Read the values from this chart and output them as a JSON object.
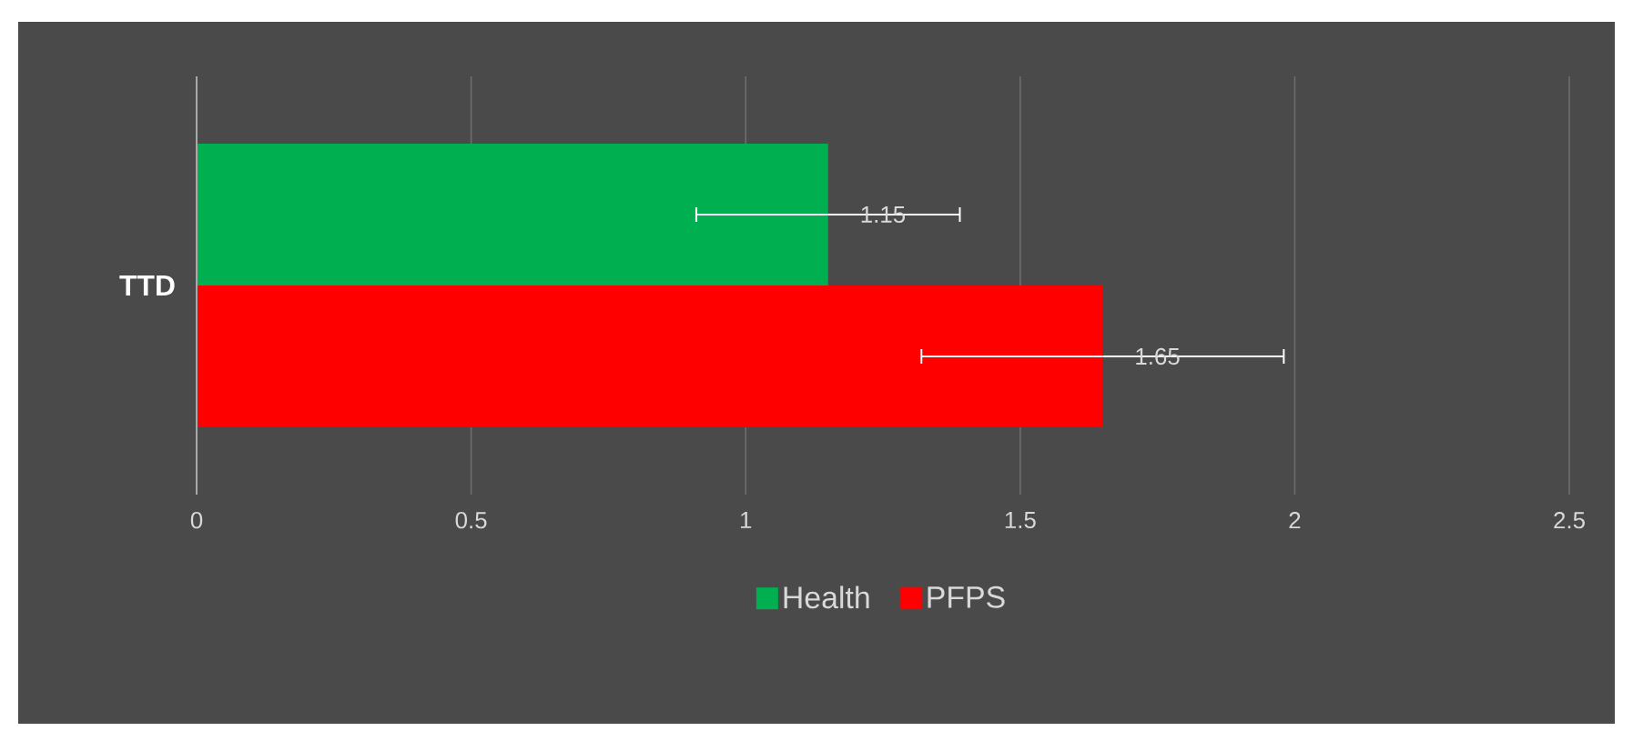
{
  "chart_data": {
    "type": "bar",
    "orientation": "horizontal",
    "categories": [
      "TTD"
    ],
    "series": [
      {
        "name": "Health",
        "color": "#00b050",
        "values": [
          1.15
        ],
        "errors": [
          0.24
        ]
      },
      {
        "name": "PFPS",
        "color": "#ff0000",
        "values": [
          1.65
        ],
        "errors": [
          0.33
        ]
      }
    ],
    "xlim": [
      0,
      2.5
    ],
    "xticks": [
      0,
      0.5,
      1,
      1.5,
      2,
      2.5
    ],
    "grid": "x",
    "legend": "bottom",
    "data_labels": true
  }
}
